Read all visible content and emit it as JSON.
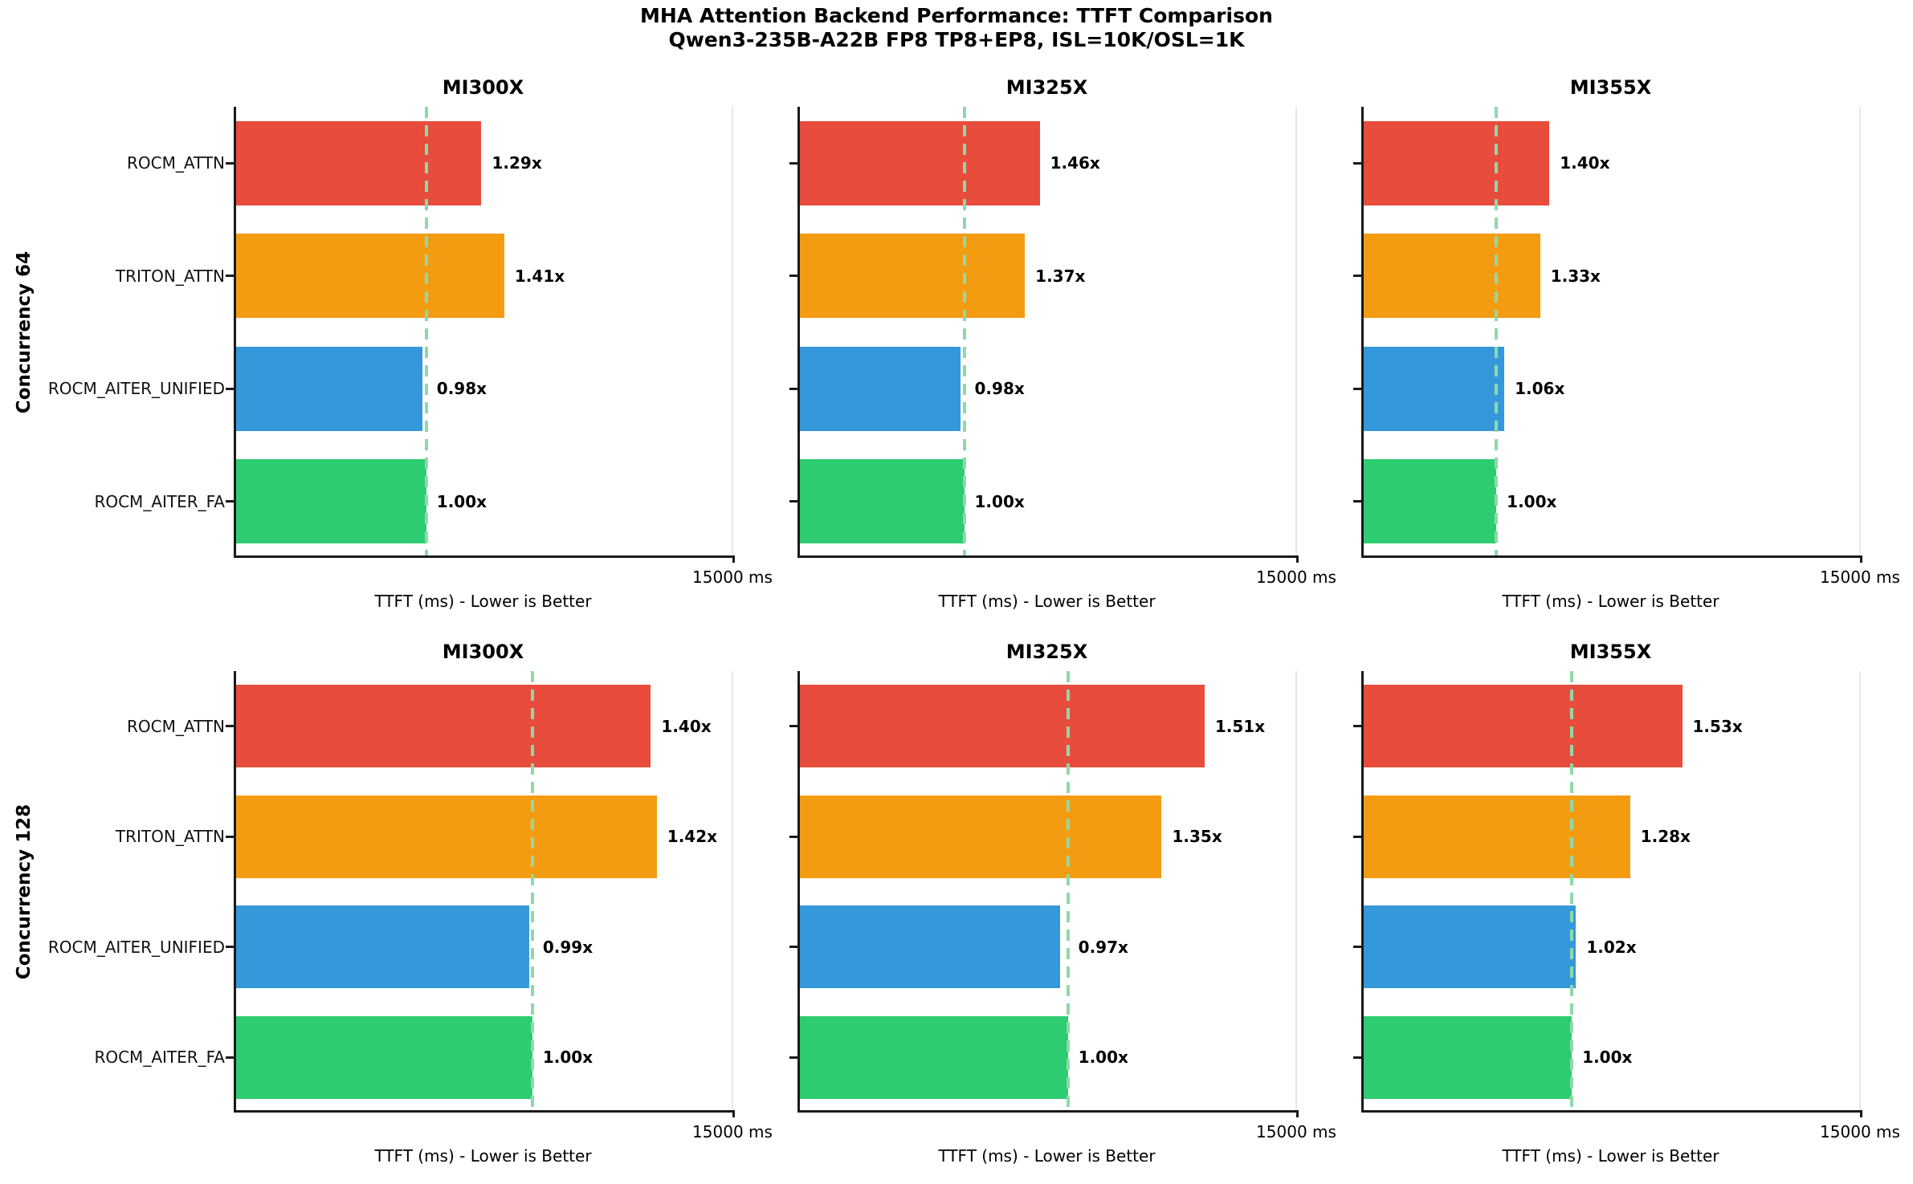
{
  "chart_data": {
    "type": "bar",
    "orientation": "horizontal",
    "title": "MHA Attention Backend Performance: TTFT Comparison",
    "subtitle": "Qwen3-235B-A22B FP8 TP8+EP8, ISL=10K/OSL=1K",
    "xlabel": "TTFT (ms) - Lower is Better",
    "xtick_label": "15000 ms",
    "xlim": [
      0,
      15000
    ],
    "legend_position": "none",
    "grid": "single vertical gridline at x=15000",
    "categories": [
      "ROCM_ATTN",
      "TRITON_ATTN",
      "ROCM_AITER_UNIFIED",
      "ROCM_AITER_FA"
    ],
    "bar_colors": [
      "#e74c3c",
      "#f39c12",
      "#3498db",
      "#2ecc71"
    ],
    "baseline_dash_color": "#8fd9a9",
    "baseline_note": "dashed line marks ROCM_AITER_FA (1.00x) TTFT",
    "rows": [
      {
        "row_label": "Concurrency 64",
        "panels": [
          {
            "title": "MI300X",
            "baseline_ms": 5720,
            "ratios": [
              1.29,
              1.41,
              0.98,
              1.0
            ],
            "ratio_labels": [
              "1.29x",
              "1.41x",
              "0.98x",
              "1.00x"
            ],
            "values_ms": [
              7380,
              8070,
              5610,
              5720
            ]
          },
          {
            "title": "MI325X",
            "baseline_ms": 4940,
            "ratios": [
              1.46,
              1.37,
              0.98,
              1.0
            ],
            "ratio_labels": [
              "1.46x",
              "1.37x",
              "0.98x",
              "1.00x"
            ],
            "values_ms": [
              7210,
              6770,
              4840,
              4940
            ]
          },
          {
            "title": "MI355X",
            "baseline_ms": 3990,
            "ratios": [
              1.4,
              1.33,
              1.06,
              1.0
            ],
            "ratio_labels": [
              "1.40x",
              "1.33x",
              "1.06x",
              "1.00x"
            ],
            "values_ms": [
              5590,
              5310,
              4230,
              3990
            ]
          }
        ]
      },
      {
        "row_label": "Concurrency 128",
        "panels": [
          {
            "title": "MI300X",
            "baseline_ms": 8910,
            "ratios": [
              1.4,
              1.42,
              0.99,
              1.0
            ],
            "ratio_labels": [
              "1.40x",
              "1.42x",
              "0.99x",
              "1.00x"
            ],
            "values_ms": [
              12470,
              12650,
              8820,
              8910
            ]
          },
          {
            "title": "MI325X",
            "baseline_ms": 8060,
            "ratios": [
              1.51,
              1.35,
              0.97,
              1.0
            ],
            "ratio_labels": [
              "1.51x",
              "1.35x",
              "0.97x",
              "1.00x"
            ],
            "values_ms": [
              12170,
              10880,
              7820,
              8060
            ]
          },
          {
            "title": "MI355X",
            "baseline_ms": 6260,
            "ratios": [
              1.53,
              1.28,
              1.02,
              1.0
            ],
            "ratio_labels": [
              "1.53x",
              "1.28x",
              "1.02x",
              "1.00x"
            ],
            "values_ms": [
              9580,
              8010,
              6390,
              6260
            ]
          }
        ]
      }
    ]
  }
}
